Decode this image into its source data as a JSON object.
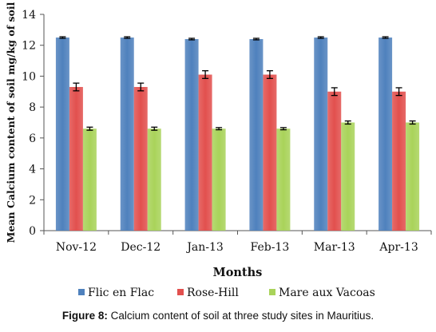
{
  "chart_data": {
    "type": "bar",
    "categories": [
      "Nov-12",
      "Dec-12",
      "Jan-13",
      "Feb-13",
      "Mar-13",
      "Apr-13"
    ],
    "series": [
      {
        "name": "Flic en Flac",
        "values": [
          12.5,
          12.5,
          12.4,
          12.4,
          12.5,
          12.5
        ],
        "errors": [
          0.05,
          0.05,
          0.05,
          0.05,
          0.05,
          0.05
        ],
        "color": "#4f81bd"
      },
      {
        "name": "Rose-Hill",
        "values": [
          9.3,
          9.3,
          10.1,
          10.1,
          9.0,
          9.0
        ],
        "errors": [
          0.25,
          0.25,
          0.25,
          0.25,
          0.25,
          0.25
        ],
        "color": "#e2504e"
      },
      {
        "name": "Mare aux Vacoas",
        "values": [
          6.6,
          6.6,
          6.6,
          6.6,
          7.0,
          7.0
        ],
        "errors": [
          0.1,
          0.1,
          0.07,
          0.07,
          0.1,
          0.1
        ],
        "color": "#a9d35a"
      }
    ],
    "xlabel": "Months",
    "ylabel": "Mean Calcium content of soil mg/kg of soil",
    "ylim": [
      0,
      14
    ],
    "yticks": [
      "0",
      "2",
      "4",
      "6",
      "8",
      "10",
      "12",
      "14"
    ],
    "grid": false,
    "legend_position": "bottom"
  },
  "caption": {
    "label": "Figure 8:",
    "text": " Calcium content of soil at three study sites in Mauritius."
  }
}
